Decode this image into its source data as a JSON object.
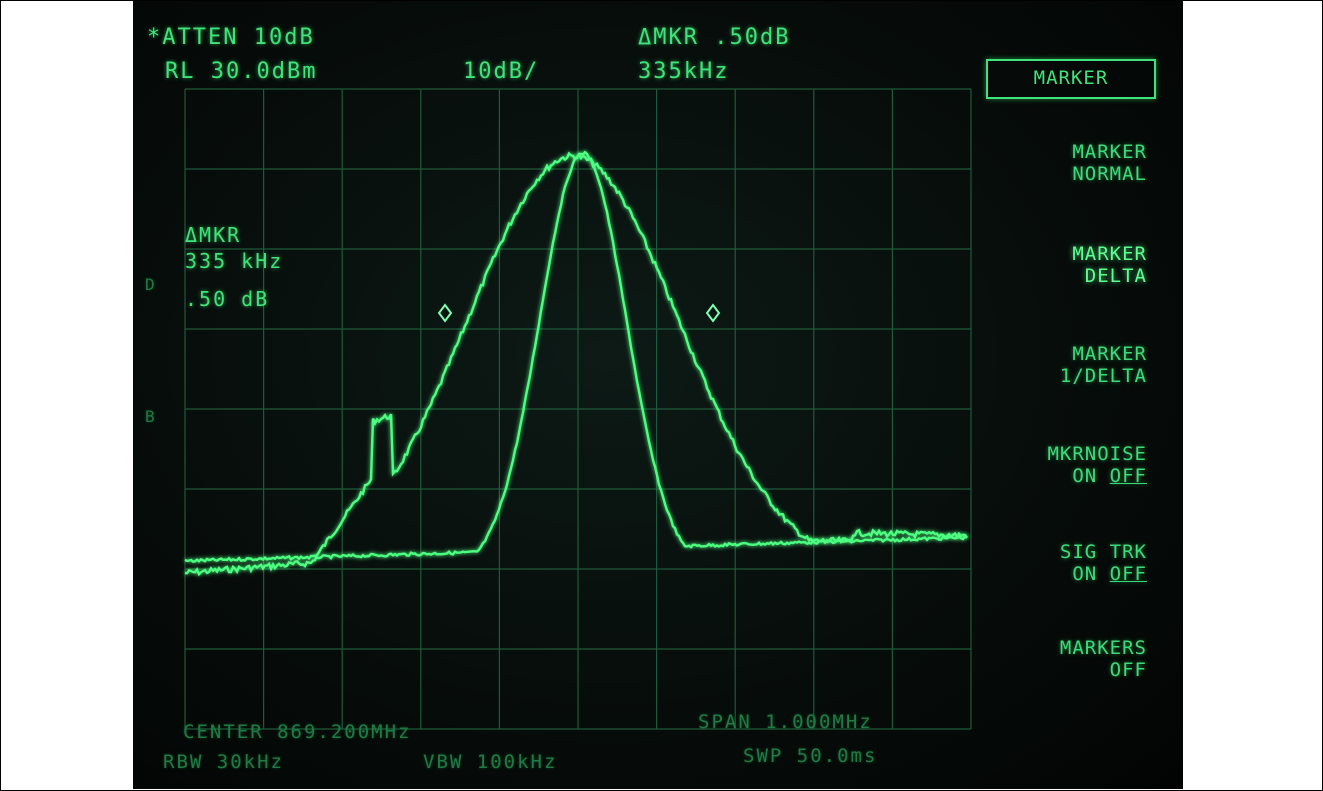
{
  "header": {
    "atten": "*ATTEN 10dB",
    "ref_level": "RL 30.0dBm",
    "scale": "10dB/",
    "delta_marker_amp": "ΔMKR .50dB",
    "delta_marker_freq": "335kHz"
  },
  "marker_readout": {
    "label": "ΔMKR",
    "freq": "335 kHz",
    "amp": ".50 dB"
  },
  "left_edge_marks": [
    "D",
    "B"
  ],
  "softkeys": {
    "menu_title": "MARKER",
    "items": [
      {
        "line1": "MARKER",
        "line2": "NORMAL",
        "state_word": "",
        "active": false
      },
      {
        "line1": "MARKER",
        "line2": "DELTA",
        "state_word": "",
        "active": true
      },
      {
        "line1": "MARKER",
        "line2": "1/DELTA",
        "state_word": "",
        "active": false
      },
      {
        "line1": "MKRNOISE",
        "line2": "ON ",
        "state_word": "OFF",
        "active": false
      },
      {
        "line1": "SIG TRK",
        "line2": "ON ",
        "state_word": "OFF",
        "active": false
      },
      {
        "line1": "MARKERS",
        "line2": "OFF",
        "state_word": "",
        "active": false
      }
    ]
  },
  "footer": {
    "center": "CENTER 869.200MHz",
    "rbw": "RBW 30kHz",
    "vbw": "VBW 100kHz",
    "span": "SPAN 1.000MHz",
    "sweep": "SWP 50.0ms"
  },
  "colors": {
    "trace": "#4dff80",
    "grid": "#1e5a3a",
    "text": "#3fe37a",
    "screen_bg": "#070d0b"
  }
}
